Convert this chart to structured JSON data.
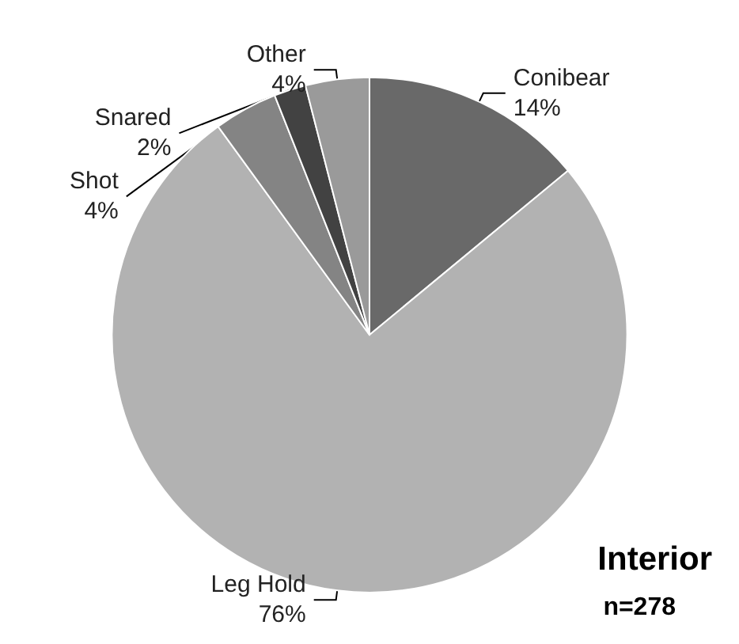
{
  "chart_data": {
    "type": "pie",
    "title": "Interior",
    "subtitle": "n=278",
    "categories": [
      "Conibear",
      "Leg Hold",
      "Shot",
      "Snared",
      "Other"
    ],
    "values": [
      14,
      76,
      4,
      2,
      4
    ],
    "value_labels": [
      "14%",
      "76%",
      "4%",
      "2%",
      "4%"
    ],
    "colors": [
      "#696969",
      "#b2b2b2",
      "#848484",
      "#424242",
      "#9a9a9a"
    ],
    "legend": false
  }
}
